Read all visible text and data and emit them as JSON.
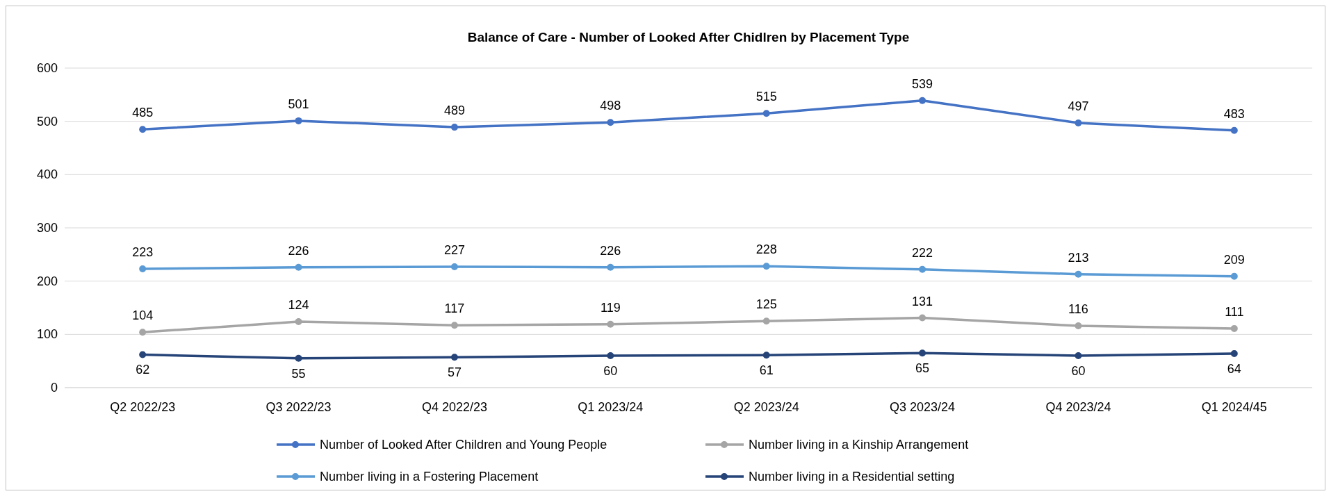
{
  "chart_data": {
    "type": "line",
    "title": "Balance  of Care - Number of Looked After Chidlren by Placement Type",
    "categories": [
      "Q2 2022/23",
      "Q3 2022/23",
      "Q4 2022/23",
      "Q1 2023/24",
      "Q2 2023/24",
      "Q3 2023/24",
      "Q4 2023/24",
      "Q1 2024/45"
    ],
    "series": [
      {
        "name": "Number of Looked After Children and Young People",
        "color": "#4472c4",
        "values": [
          485,
          501,
          489,
          498,
          515,
          539,
          497,
          483
        ]
      },
      {
        "name": "Number living in a Fostering Placement",
        "color": "#5b9bd5",
        "values": [
          223,
          226,
          227,
          226,
          228,
          222,
          213,
          209
        ]
      },
      {
        "name": "Number living in a Kinship Arrangement",
        "color": "#a5a5a5",
        "values": [
          104,
          124,
          117,
          119,
          125,
          131,
          116,
          111
        ]
      },
      {
        "name": "Number living in a Residential setting",
        "color": "#264478",
        "values": [
          62,
          55,
          57,
          60,
          61,
          65,
          60,
          64
        ]
      }
    ],
    "ylim": [
      0,
      600
    ],
    "yticks": [
      0,
      100,
      200,
      300,
      400,
      500,
      600
    ],
    "grid": "y",
    "legend": "bottom",
    "marker": "circle",
    "line_style": "solid",
    "data_labels": true
  }
}
